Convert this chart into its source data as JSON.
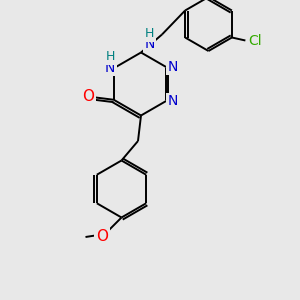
{
  "bg_color": "#e8e8e8",
  "atom_colors": {
    "N": "#0000cc",
    "O": "#ff0000",
    "Cl": "#33aa00",
    "H_label": "#008080"
  },
  "font_size": 10,
  "bond_color": "#000000",
  "bond_width": 1.4
}
